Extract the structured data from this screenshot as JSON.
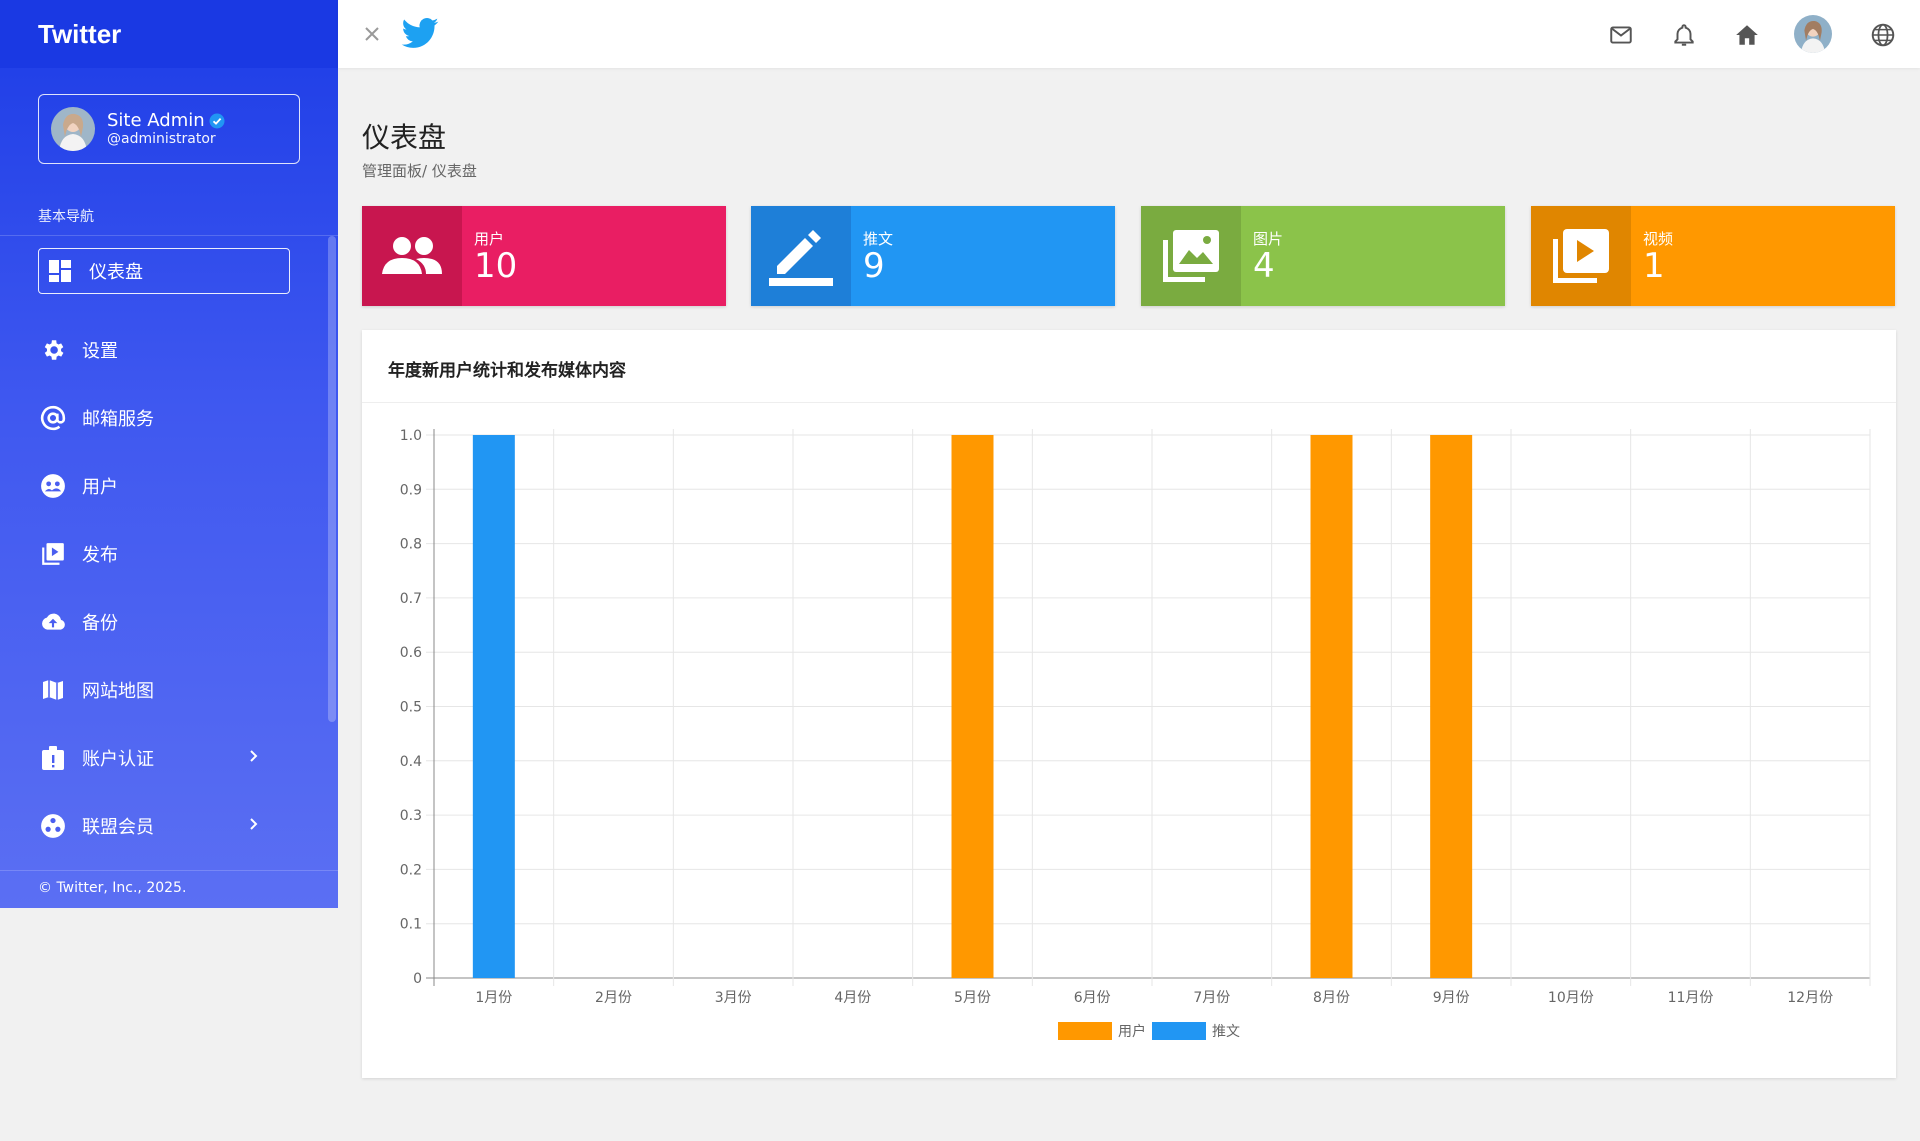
{
  "app": {
    "brand": "Twitter"
  },
  "profile": {
    "name": "Site Admin",
    "handle": "@administrator"
  },
  "sidebar": {
    "section_label": "基本导航",
    "items": [
      {
        "label": "仪表盘",
        "icon": "dashboard-icon",
        "active": true
      },
      {
        "label": "设置",
        "icon": "gear-icon"
      },
      {
        "label": "邮箱服务",
        "icon": "at-icon"
      },
      {
        "label": "用户",
        "icon": "users-icon"
      },
      {
        "label": "发布",
        "icon": "media-play-icon"
      },
      {
        "label": "备份",
        "icon": "cloud-upload-icon"
      },
      {
        "label": "网站地图",
        "icon": "map-icon"
      },
      {
        "label": "账户认证",
        "icon": "badge-alert-icon",
        "has_submenu": true
      },
      {
        "label": "联盟会员",
        "icon": "affiliate-icon",
        "has_submenu": true
      }
    ],
    "copyright": "© Twitter, Inc., 2025."
  },
  "topbar": {
    "icons": [
      "close-icon",
      "twitter-bird-icon",
      "mail-icon",
      "bell-icon",
      "home-icon",
      "avatar",
      "globe-icon"
    ]
  },
  "page": {
    "title": "仪表盘",
    "breadcrumb": "管理面板/ 仪表盘"
  },
  "stats": [
    {
      "label": "用户",
      "value": "10",
      "icon": "users-icon",
      "color": "#e91e63",
      "dark": "#c8164f"
    },
    {
      "label": "推文",
      "value": "9",
      "icon": "pencil-icon",
      "color": "#2196f3",
      "dark": "#1e7fd8"
    },
    {
      "label": "图片",
      "value": "4",
      "icon": "images-icon",
      "color": "#8bc34a",
      "dark": "#7aab40"
    },
    {
      "label": "视频",
      "value": "1",
      "icon": "video-icon",
      "color": "#ff9800",
      "dark": "#e08600"
    }
  ],
  "panel": {
    "title": "年度新用户统计和发布媒体内容"
  },
  "chart_data": {
    "type": "bar",
    "categories": [
      "1月份",
      "2月份",
      "3月份",
      "4月份",
      "5月份",
      "6月份",
      "7月份",
      "8月份",
      "9月份",
      "10月份",
      "11月份",
      "12月份"
    ],
    "series": [
      {
        "name": "用户",
        "color": "#ff9800",
        "values": [
          0,
          0,
          0,
          0,
          1,
          0,
          0,
          1,
          1,
          0,
          0,
          0
        ]
      },
      {
        "name": "推文",
        "color": "#2196f3",
        "values": [
          1,
          0,
          0,
          0,
          0,
          0,
          0,
          0,
          0,
          0,
          0,
          0
        ]
      }
    ],
    "yticks": [
      "0",
      "0.1",
      "0.2",
      "0.3",
      "0.4",
      "0.5",
      "0.6",
      "0.7",
      "0.8",
      "0.9",
      "1.0"
    ],
    "ylim": [
      0,
      1
    ],
    "grid": true,
    "legend_position": "bottom"
  }
}
